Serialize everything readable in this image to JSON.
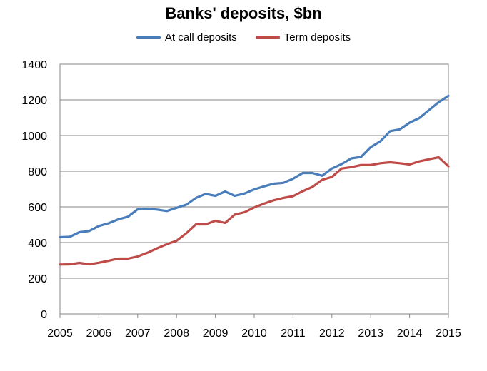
{
  "chart_data": {
    "type": "line",
    "title": "Banks' deposits, $bn",
    "xlabel": "",
    "ylabel": "",
    "xlim": [
      2005,
      2015
    ],
    "ylim": [
      0,
      1400
    ],
    "yticks": [
      0,
      200,
      400,
      600,
      800,
      1000,
      1200,
      1400
    ],
    "xticks": [
      2005,
      2006,
      2007,
      2008,
      2009,
      2010,
      2011,
      2012,
      2013,
      2014,
      2015
    ],
    "grid": "horizontal",
    "legend_position": "top-center",
    "x": [
      2005.0,
      2005.25,
      2005.5,
      2005.75,
      2006.0,
      2006.25,
      2006.5,
      2006.75,
      2007.0,
      2007.25,
      2007.5,
      2007.75,
      2008.0,
      2008.25,
      2008.5,
      2008.75,
      2009.0,
      2009.25,
      2009.5,
      2009.75,
      2010.0,
      2010.25,
      2010.5,
      2010.75,
      2011.0,
      2011.25,
      2011.5,
      2011.75,
      2012.0,
      2012.25,
      2012.5,
      2012.75,
      2013.0,
      2013.25,
      2013.5,
      2013.75,
      2014.0,
      2014.25,
      2014.5,
      2014.75,
      2015.0
    ],
    "series": [
      {
        "name": "At call deposits",
        "color": "#4a7ebb",
        "values": [
          430,
          432,
          458,
          465,
          493,
          508,
          530,
          545,
          587,
          590,
          585,
          577,
          595,
          612,
          650,
          673,
          662,
          686,
          662,
          675,
          698,
          715,
          730,
          735,
          758,
          790,
          790,
          775,
          815,
          840,
          872,
          880,
          935,
          968,
          1025,
          1035,
          1072,
          1098,
          1143,
          1187,
          1223
        ]
      },
      {
        "name": "Term deposits",
        "color": "#be4b48",
        "values": [
          277,
          278,
          286,
          278,
          287,
          298,
          310,
          310,
          322,
          343,
          368,
          391,
          410,
          452,
          502,
          502,
          522,
          510,
          557,
          570,
          597,
          618,
          637,
          650,
          660,
          688,
          712,
          752,
          768,
          815,
          823,
          835,
          835,
          845,
          850,
          845,
          838,
          855,
          867,
          878,
          828
        ]
      }
    ]
  }
}
